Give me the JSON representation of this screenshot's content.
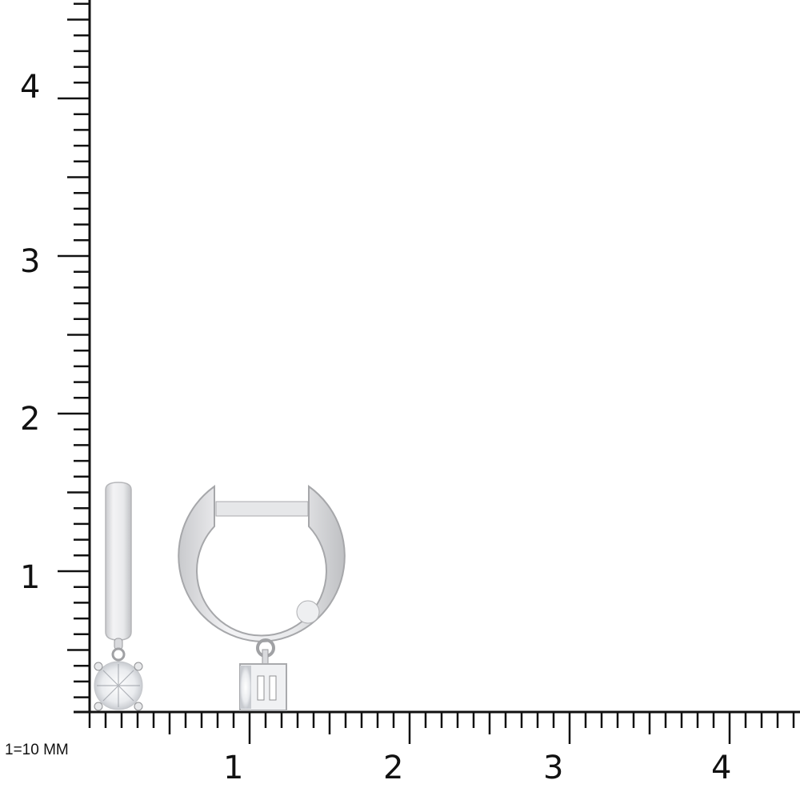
{
  "scale_label": "1=10 MM",
  "ruler": {
    "vertical_labels": [
      "1",
      "2",
      "3",
      "4"
    ],
    "horizontal_labels": [
      "1",
      "2",
      "3",
      "4"
    ],
    "minor_step": 0.1,
    "line_color": "#111111"
  },
  "product": {
    "views": [
      "side-view",
      "front-view"
    ],
    "metal_color": "#e4e5e8",
    "stone": "round-diamond"
  }
}
